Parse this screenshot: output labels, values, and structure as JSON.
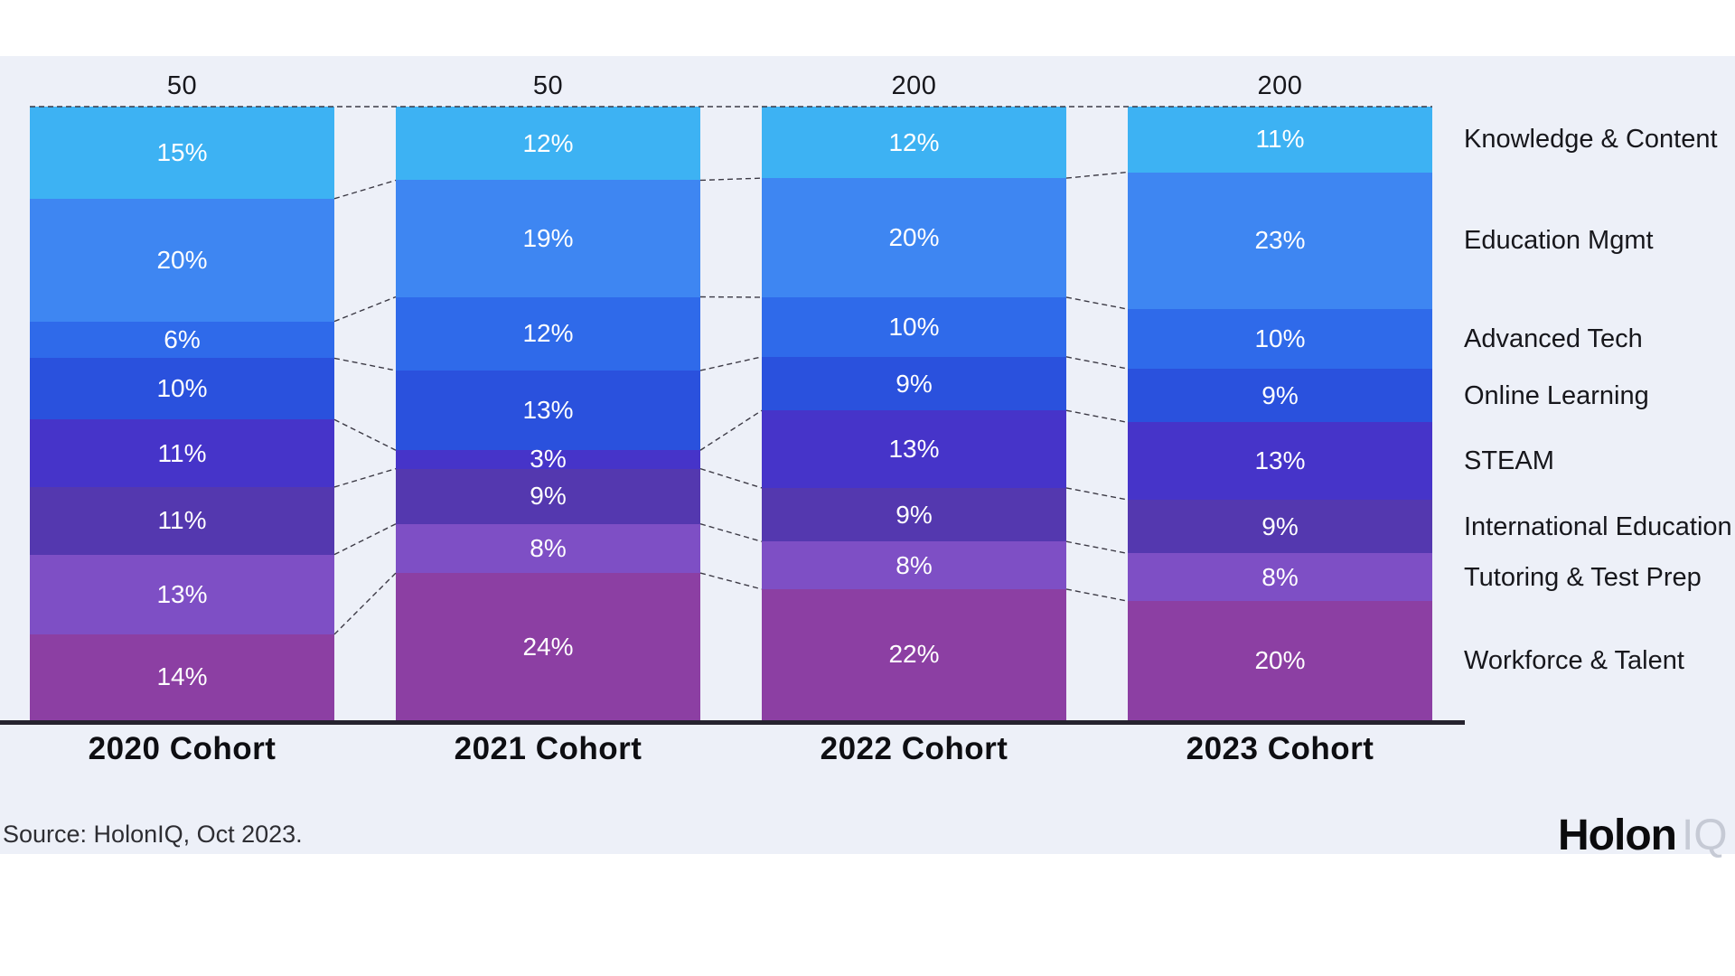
{
  "chart_data": {
    "type": "bar",
    "variant": "stacked-100-percent-columns",
    "unit": "%",
    "cohorts": [
      {
        "label": "2020 Cohort",
        "total_label": "50",
        "values": [
          15,
          20,
          6,
          10,
          11,
          11,
          13,
          14
        ]
      },
      {
        "label": "2021 Cohort",
        "total_label": "50",
        "values": [
          12,
          19,
          12,
          13,
          3,
          9,
          8,
          24
        ]
      },
      {
        "label": "2022 Cohort",
        "total_label": "200",
        "values": [
          12,
          20,
          10,
          9,
          13,
          9,
          8,
          22
        ]
      },
      {
        "label": "2023 Cohort",
        "total_label": "200",
        "values": [
          11,
          23,
          10,
          9,
          13,
          9,
          8,
          20
        ]
      }
    ],
    "categories": [
      {
        "label": "Knowledge & Content",
        "color": "#3db2f3",
        "texture": "none"
      },
      {
        "label": "Education Mgmt",
        "color": "#3e86f2",
        "texture": "dots-light"
      },
      {
        "label": "Advanced Tech",
        "color": "#2f6aea",
        "texture": "none"
      },
      {
        "label": "Online Learning",
        "color": "#2a51dd",
        "texture": "none"
      },
      {
        "label": "STEAM",
        "color": "#4634c9",
        "texture": "none"
      },
      {
        "label": "International Education",
        "color": "#5438af",
        "texture": "dots"
      },
      {
        "label": "Tutoring & Test Prep",
        "color": "#7e4fc5",
        "texture": "none"
      },
      {
        "label": "Workforce & Talent",
        "color": "#8c3fa3",
        "texture": "none"
      }
    ],
    "legend_position": "right",
    "connector_lines": "dashed",
    "axis_color": "#26232f",
    "panel_background": "#edf0f8"
  },
  "footer": {
    "source": "Source: HolonIQ, Oct 2023.",
    "logo_main": "Holon",
    "logo_sub": "IQ"
  }
}
